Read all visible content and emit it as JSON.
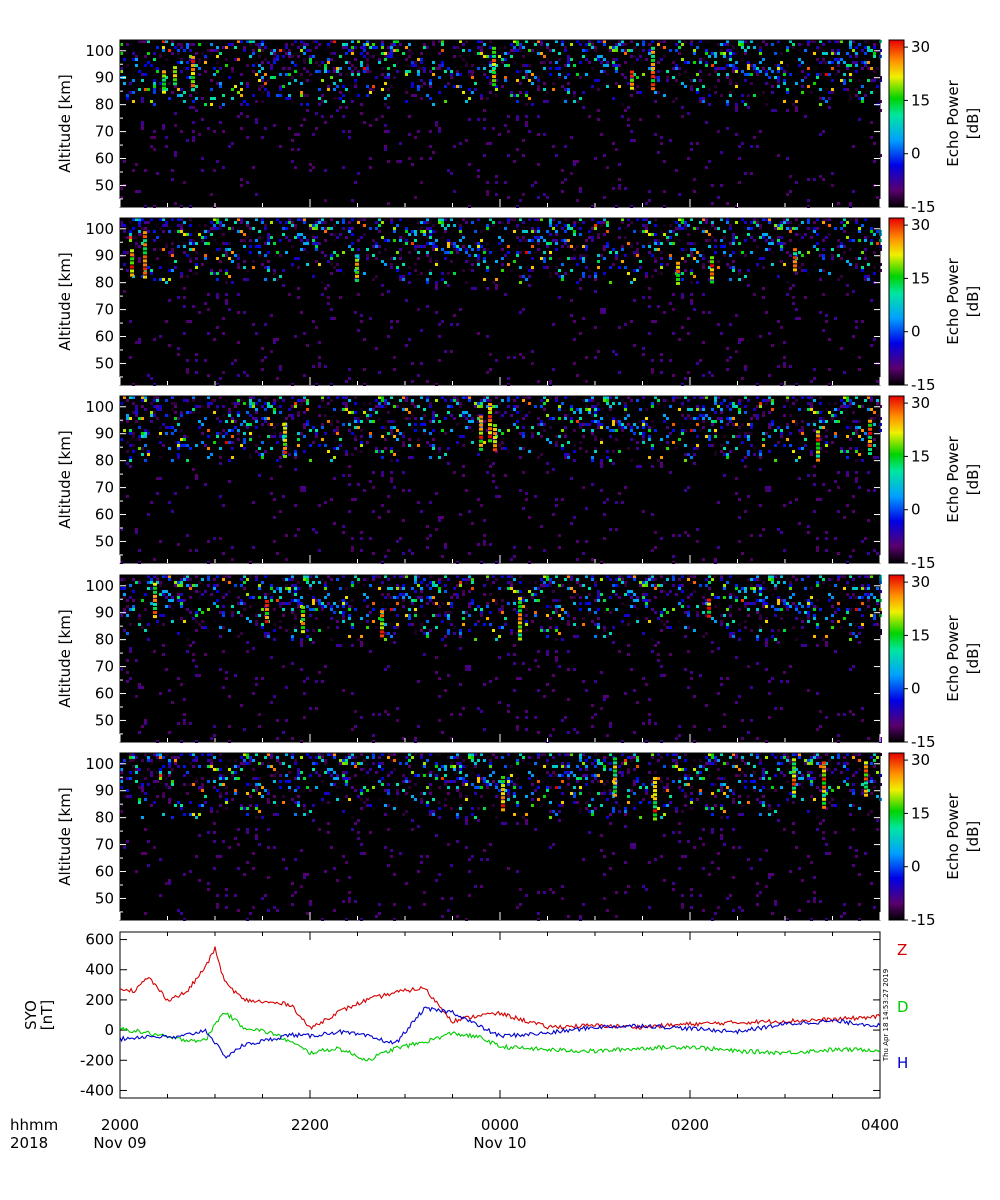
{
  "chart_data": [
    {
      "type": "heatmap",
      "ylabel": "Altitude [km]",
      "yticks": [
        "100",
        "90",
        "80",
        "70",
        "60",
        "50"
      ],
      "ylim": [
        42,
        104
      ],
      "colorbar": {
        "label_line1": "Echo Power",
        "label_line2": "[dB]",
        "ticks": [
          "30",
          "15",
          "0",
          "-15"
        ],
        "range": [
          -15,
          32
        ]
      }
    },
    {
      "type": "heatmap",
      "ylabel": "Altitude [km]",
      "yticks": [
        "100",
        "90",
        "80",
        "70",
        "60",
        "50"
      ],
      "ylim": [
        42,
        104
      ],
      "colorbar": {
        "label_line1": "Echo Power",
        "label_line2": "[dB]",
        "ticks": [
          "30",
          "15",
          "0",
          "-15"
        ],
        "range": [
          -15,
          32
        ]
      }
    },
    {
      "type": "heatmap",
      "ylabel": "Altitude [km]",
      "yticks": [
        "100",
        "90",
        "80",
        "70",
        "60",
        "50"
      ],
      "ylim": [
        42,
        104
      ],
      "colorbar": {
        "label_line1": "Echo Power",
        "label_line2": "[dB]",
        "ticks": [
          "30",
          "15",
          "0",
          "-15"
        ],
        "range": [
          -15,
          32
        ]
      }
    },
    {
      "type": "heatmap",
      "ylabel": "Altitude [km]",
      "yticks": [
        "100",
        "90",
        "80",
        "70",
        "60",
        "50"
      ],
      "ylim": [
        42,
        104
      ],
      "colorbar": {
        "label_line1": "Echo Power",
        "label_line2": "[dB]",
        "ticks": [
          "30",
          "15",
          "0",
          "-15"
        ],
        "range": [
          -15,
          32
        ]
      }
    },
    {
      "type": "heatmap",
      "ylabel": "Altitude [km]",
      "yticks": [
        "100",
        "90",
        "80",
        "70",
        "60",
        "50"
      ],
      "ylim": [
        42,
        104
      ],
      "colorbar": {
        "label_line1": "Echo Power",
        "label_line2": "[dB]",
        "ticks": [
          "30",
          "15",
          "0",
          "-15"
        ],
        "range": [
          -15,
          32
        ]
      }
    },
    {
      "type": "line",
      "ylabel_line1": "SYO",
      "ylabel_line2": "[nT]",
      "yticks": [
        "600",
        "400",
        "200",
        "0",
        "-200",
        "-400"
      ],
      "ylim": [
        -450,
        650
      ],
      "xlim_hours": [
        0,
        8
      ],
      "series": [
        {
          "name": "Z",
          "color": "#d40000",
          "x": [
            0,
            0.15,
            0.3,
            0.5,
            0.7,
            0.9,
            1.0,
            1.1,
            1.3,
            1.6,
            1.8,
            2.0,
            2.3,
            2.6,
            2.9,
            3.2,
            3.5,
            3.8,
            4.0,
            4.5,
            5.0,
            5.5,
            6.0,
            6.5,
            7.0,
            7.5,
            8.0
          ],
          "y": [
            280,
            260,
            350,
            200,
            250,
            420,
            540,
            320,
            200,
            180,
            170,
            10,
            120,
            200,
            250,
            280,
            60,
            100,
            110,
            20,
            30,
            20,
            40,
            50,
            60,
            70,
            90
          ]
        },
        {
          "name": "D",
          "color": "#00cc00",
          "x": [
            0,
            0.3,
            0.6,
            0.9,
            1.0,
            1.1,
            1.3,
            1.6,
            1.8,
            2.0,
            2.3,
            2.6,
            2.9,
            3.2,
            3.5,
            3.8,
            4.0,
            4.5,
            5.0,
            5.5,
            6.0,
            6.5,
            7.0,
            7.5,
            8.0
          ],
          "y": [
            10,
            -20,
            -60,
            -70,
            40,
            120,
            20,
            -20,
            -80,
            -150,
            -120,
            -200,
            -120,
            -80,
            -20,
            -50,
            -110,
            -130,
            -140,
            -120,
            -110,
            -140,
            -150,
            -130,
            -130
          ]
        },
        {
          "name": "H",
          "color": "#0000cc",
          "x": [
            0,
            0.3,
            0.6,
            0.9,
            1.0,
            1.1,
            1.3,
            1.6,
            1.8,
            2.0,
            2.3,
            2.6,
            2.9,
            3.2,
            3.5,
            3.8,
            4.0,
            4.5,
            5.0,
            5.5,
            6.0,
            6.5,
            7.0,
            7.5,
            8.0
          ],
          "y": [
            -60,
            -40,
            -50,
            0,
            -80,
            -180,
            -100,
            -60,
            -30,
            -40,
            -10,
            -40,
            -90,
            140,
            120,
            20,
            -40,
            -20,
            20,
            30,
            10,
            -10,
            40,
            60,
            30
          ]
        }
      ]
    }
  ],
  "xaxis": {
    "row1_label": "hhmm",
    "row2_label": "2018",
    "ticks": [
      "2000",
      "2200",
      "0000",
      "0200",
      "0400"
    ],
    "date_labels": [
      {
        "tick": "2000",
        "text": "Nov 09"
      },
      {
        "tick": "0000",
        "text": "Nov 10"
      }
    ]
  },
  "timestamp": "Thu Apr 18 14:53:27 2019"
}
